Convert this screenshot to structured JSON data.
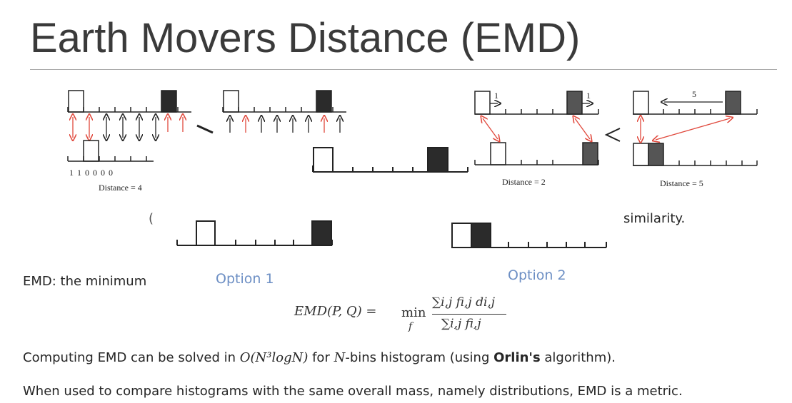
{
  "slide": {
    "title": "Earth Movers Distance (EMD)",
    "similarity_fragment": "similarity.",
    "paren_fragment": "(",
    "emd_def_fragment": "EMD: the minimum",
    "option1": "Option 1",
    "option2": "Option 2",
    "formula": {
      "lhs": "EMD(P, Q) =",
      "min": "min",
      "min_sub": "f",
      "numerator": "∑i,j fi,j di,j",
      "denominator": "∑i,j fi,j"
    },
    "line_complexity": {
      "prefix": "Computing EMD can be solved in ",
      "complexity": "O(N³logN)",
      "mid": " for ",
      "n": "N",
      "suffix_before_bold": "-bins histogram (using ",
      "bold": "Orlin's",
      "suffix": " algorithm)."
    },
    "line_metric": "When used to compare histograms with the same overall mass, namely distributions, EMD is a metric."
  },
  "figure": {
    "left_digits": "1  1  0  0  0  0",
    "left_distance": "Distance = 4",
    "mid_distance": "Distance = 2",
    "right_distance": "Distance = 5",
    "mid_label_left": "1",
    "mid_label_right": "1",
    "right_label": "5",
    "colors": {
      "dark": "#2b2b2b",
      "grey": "#555555",
      "red": "#e0483c",
      "option": "#6d8fc4"
    }
  }
}
